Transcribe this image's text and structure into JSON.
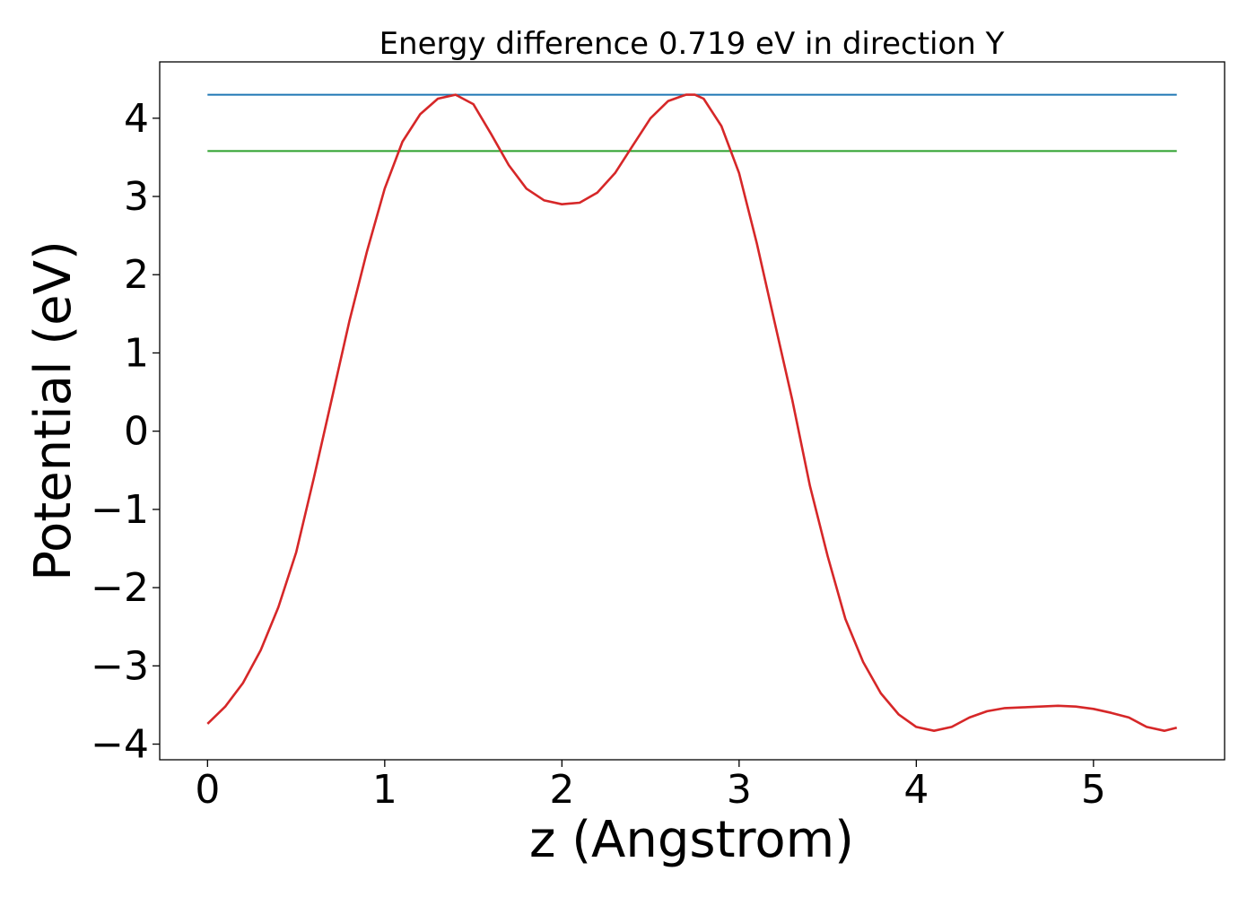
{
  "chart_data": {
    "type": "line",
    "title": "Energy difference 0.719 eV in direction Y",
    "xlabel": "z (Angstrom)",
    "ylabel": "Potential (eV)",
    "xlim": [
      -0.27,
      5.74
    ],
    "ylim": [
      -4.2,
      4.72
    ],
    "xticks": [
      0,
      1,
      2,
      3,
      4,
      5
    ],
    "xtick_labels": [
      "0",
      "1",
      "2",
      "3",
      "4",
      "5"
    ],
    "yticks": [
      -4,
      -3,
      -2,
      -1,
      0,
      1,
      2,
      3,
      4
    ],
    "ytick_labels": [
      "−4",
      "−3",
      "−2",
      "−1",
      "0",
      "1",
      "2",
      "3",
      "4"
    ],
    "grid": false,
    "series": [
      {
        "color": "#1f77b4",
        "x": [
          0.0,
          5.47
        ],
        "y": [
          4.3,
          4.3
        ]
      },
      {
        "color": "#2ca02c",
        "x": [
          0.0,
          5.47
        ],
        "y": [
          3.58,
          3.58
        ]
      },
      {
        "color": "#d62728",
        "x": [
          0.0,
          0.1,
          0.2,
          0.3,
          0.4,
          0.5,
          0.6,
          0.7,
          0.8,
          0.9,
          1.0,
          1.1,
          1.2,
          1.3,
          1.4,
          1.5,
          1.6,
          1.7,
          1.8,
          1.9,
          2.0,
          2.1,
          2.2,
          2.3,
          2.4,
          2.5,
          2.6,
          2.7,
          2.75,
          2.8,
          2.9,
          3.0,
          3.1,
          3.2,
          3.3,
          3.4,
          3.5,
          3.6,
          3.7,
          3.8,
          3.9,
          4.0,
          4.1,
          4.2,
          4.3,
          4.4,
          4.5,
          4.6,
          4.7,
          4.8,
          4.9,
          5.0,
          5.1,
          5.2,
          5.3,
          5.4,
          5.47
        ],
        "y": [
          -3.74,
          -3.52,
          -3.22,
          -2.8,
          -2.25,
          -1.55,
          -0.6,
          0.4,
          1.4,
          2.3,
          3.1,
          3.7,
          4.05,
          4.25,
          4.3,
          4.18,
          3.8,
          3.4,
          3.1,
          2.95,
          2.9,
          2.92,
          3.05,
          3.3,
          3.65,
          4.0,
          4.22,
          4.3,
          4.3,
          4.25,
          3.9,
          3.3,
          2.4,
          1.4,
          0.4,
          -0.7,
          -1.6,
          -2.4,
          -2.95,
          -3.35,
          -3.62,
          -3.78,
          -3.83,
          -3.78,
          -3.66,
          -3.58,
          -3.54,
          -3.53,
          -3.52,
          -3.51,
          -3.52,
          -3.55,
          -3.6,
          -3.66,
          -3.78,
          -3.83,
          -3.79
        ]
      }
    ]
  }
}
